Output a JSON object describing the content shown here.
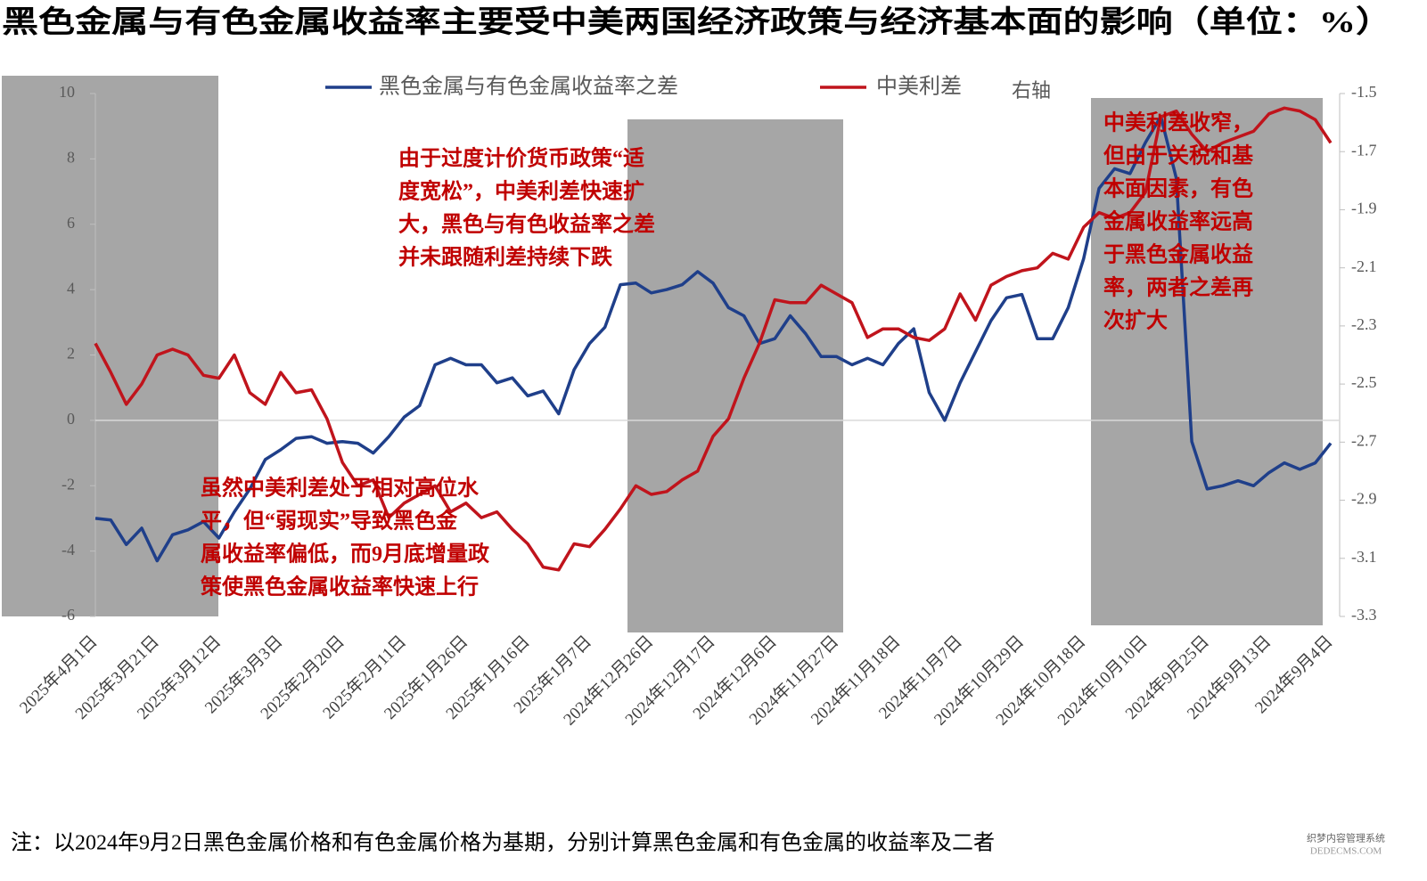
{
  "chart_data": {
    "type": "line",
    "title": "黑色金属与有色金属收益率主要受中美两国经济政策与经济基本面的影响（单位：%）",
    "categories": [
      "2025年4月1日",
      null,
      null,
      null,
      "2025年3月21日",
      null,
      null,
      null,
      "2025年3月12日",
      null,
      null,
      null,
      "2025年3月3日",
      null,
      null,
      null,
      "2025年2月20日",
      null,
      null,
      null,
      "2025年2月11日",
      null,
      null,
      null,
      "2025年1月26日",
      null,
      null,
      null,
      "2025年1月16日",
      null,
      null,
      null,
      "2025年1月7日",
      null,
      null,
      null,
      "2024年12月26日",
      null,
      null,
      null,
      "2024年12月17日",
      null,
      null,
      null,
      "2024年12月6日",
      null,
      null,
      null,
      "2024年11月27日",
      null,
      null,
      null,
      "2024年11月18日",
      null,
      null,
      null,
      "2024年11月7日",
      null,
      null,
      null,
      "2024年10月29日",
      null,
      null,
      null,
      "2024年10月18日",
      null,
      null,
      null,
      "2024年10月10日",
      null,
      null,
      null,
      "2024年9月25日",
      null,
      null,
      null,
      "2024年9月13日",
      null,
      null,
      null,
      "2024年9月4日"
    ],
    "series": [
      {
        "name": "黑色金属与有色金属收益率之差",
        "color": "#1f3f8a",
        "values": [
          -3.0,
          -3.05,
          -3.8,
          -3.3,
          -4.3,
          -3.5,
          -3.35,
          -3.1,
          -3.6,
          -2.8,
          -2.1,
          -1.2,
          -0.9,
          -0.55,
          -0.5,
          -0.7,
          -0.65,
          -0.7,
          -1.0,
          -0.5,
          0.1,
          0.45,
          1.7,
          1.9,
          1.7,
          1.7,
          1.15,
          1.3,
          0.75,
          0.9,
          0.2,
          1.55,
          2.35,
          2.85,
          4.15,
          4.2,
          3.9,
          4.0,
          4.15,
          4.55,
          4.2,
          3.45,
          3.2,
          2.35,
          2.5,
          3.2,
          2.65,
          1.95,
          1.95,
          1.7,
          1.9,
          1.7,
          2.35,
          2.8,
          0.85,
          0.0,
          1.15,
          2.1,
          3.05,
          3.75,
          3.85,
          2.5,
          2.5,
          3.45,
          4.95,
          7.1,
          7.7,
          7.55,
          8.5,
          9.3,
          7.4,
          -0.65,
          -2.1,
          -2.0,
          -1.85,
          -2.0,
          -1.6,
          -1.3,
          -1.5,
          -1.3,
          -0.7
        ]
      },
      {
        "name": "中美利差",
        "color": "#c0141c",
        "axis": "y2",
        "values": [
          -2.36,
          -2.46,
          -2.57,
          -2.5,
          -2.4,
          -2.38,
          -2.4,
          -2.47,
          -2.48,
          -2.4,
          -2.53,
          -2.57,
          -2.46,
          -2.53,
          -2.52,
          -2.62,
          -2.77,
          -2.85,
          -2.83,
          -2.96,
          -2.91,
          -2.88,
          -2.85,
          -2.94,
          -2.91,
          -2.96,
          -2.94,
          -3.0,
          -3.05,
          -3.13,
          -3.14,
          -3.05,
          -3.06,
          -3.0,
          -2.93,
          -2.85,
          -2.88,
          -2.87,
          -2.83,
          -2.8,
          -2.68,
          -2.62,
          -2.48,
          -2.36,
          -2.21,
          -2.22,
          -2.22,
          -2.16,
          -2.19,
          -2.22,
          -2.34,
          -2.31,
          -2.31,
          -2.34,
          -2.35,
          -2.31,
          -2.19,
          -2.28,
          -2.16,
          -2.13,
          -2.11,
          -2.1,
          -2.05,
          -2.07,
          -1.96,
          -1.91,
          -1.93,
          -1.91,
          -1.84,
          -1.58,
          -1.56,
          -1.64,
          -1.7,
          -1.67,
          -1.65,
          -1.63,
          -1.57,
          -1.55,
          -1.56,
          -1.59,
          -1.67
        ]
      }
    ],
    "ylim": [
      -6,
      10
    ],
    "yticks": [
      -6,
      -4,
      -2,
      0,
      2,
      4,
      6,
      8,
      10
    ],
    "y2lim": [
      -3.3,
      -1.5
    ],
    "y2ticks": [
      -3.3,
      -3.1,
      -2.9,
      -2.7,
      -2.5,
      -2.3,
      -2.1,
      -1.9,
      -1.7,
      -1.5
    ],
    "axis_note": "右轴",
    "annotations": [
      {
        "lines": [
          "由于过度计价货币政策“适",
          "度宽松”，中美利差快速扩",
          "大，黑色与有色收益率之差",
          "并未跟随利差持续下跌"
        ]
      },
      {
        "lines": [
          "虽然中美利差处于相对高位水",
          "平，但“弱现实”导致黑色金",
          "属收益率偏低，而9月底增量政",
          "策使黑色金属收益率快速上行"
        ]
      },
      {
        "lines": [
          "中美利差收窄，",
          "但由于关税和基",
          "本面因素，有色",
          "金属收益率远高",
          "于黑色金属收益",
          "率，两者之差再",
          "次扩大"
        ]
      }
    ],
    "note": "注：以2024年9月2日黑色金属价格和有色金属价格为基期，分别计算黑色金属和有色金属的收益率及二者",
    "watermark": [
      "织梦内容管理系统",
      "DEDECMS.COM"
    ]
  }
}
